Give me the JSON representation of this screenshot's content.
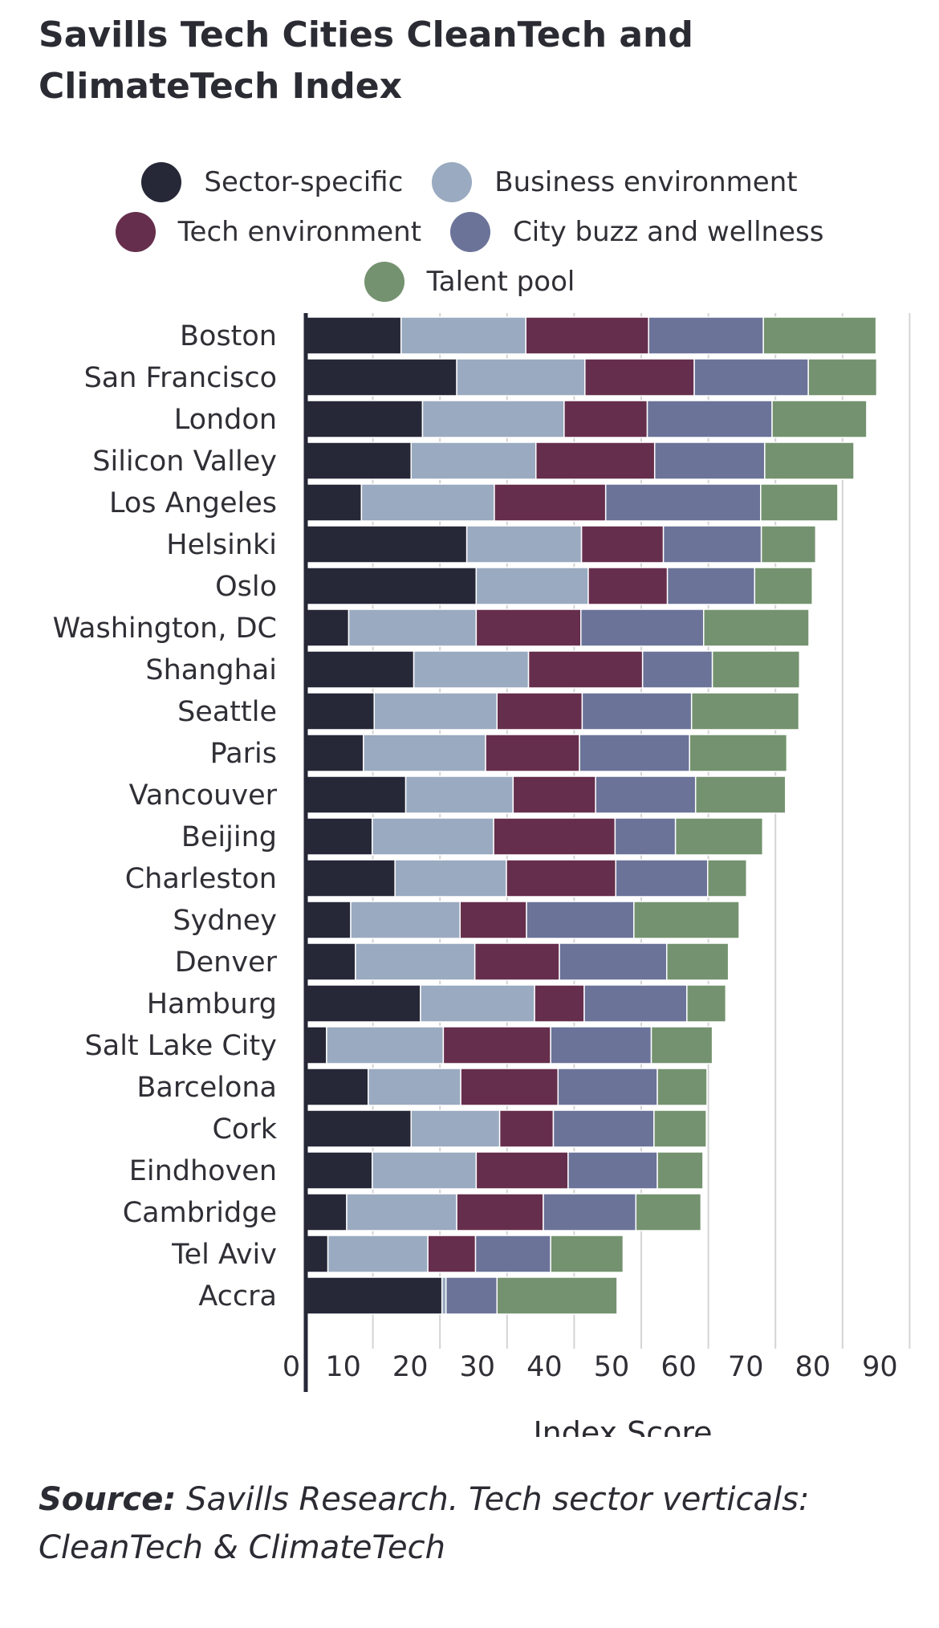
{
  "title_line1": "Savills Tech Cities CleanTech and",
  "title_line2": "ClimateTech Index",
  "source_label": "Source:",
  "source_text": "Savills Research. Tech sector verticals: CleanTech & ClimateTech",
  "chart_data": {
    "type": "bar",
    "orientation": "horizontal",
    "stacked": true,
    "title": "Savills Tech Cities CleanTech and ClimateTech Index",
    "xlabel": "Index Score",
    "ylabel": "",
    "xlim": [
      0,
      90
    ],
    "xticks": [
      "0",
      "10",
      "20",
      "30",
      "40",
      "50",
      "60",
      "70",
      "80",
      "90"
    ],
    "grid": "vertical",
    "legend_position": "top",
    "categories": [
      "Boston",
      "San Francisco",
      "London",
      "Silicon Valley",
      "Los Angeles",
      "Helsinki",
      "Oslo",
      "Washington, DC",
      "Shanghai",
      "Seattle",
      "Paris",
      "Vancouver",
      "Beijing",
      "Charleston",
      "Sydney",
      "Denver",
      "Hamburg",
      "Salt Lake City",
      "Barcelona",
      "Cork",
      "Eindhoven",
      "Cambridge",
      "Tel Aviv",
      "Accra"
    ],
    "series": [
      {
        "name": "Sector-specific",
        "color": "#262838",
        "values": [
          14.2,
          22.5,
          17.4,
          15.7,
          8.3,
          24.0,
          25.4,
          6.4,
          16.1,
          10.2,
          8.6,
          14.9,
          9.9,
          13.3,
          6.7,
          7.4,
          17.1,
          3.1,
          9.3,
          15.7,
          9.9,
          6.1,
          3.3,
          20.3
        ]
      },
      {
        "name": "Business environment",
        "color": "#9aaac0",
        "values": [
          18.6,
          19.1,
          21.1,
          18.6,
          19.8,
          17.1,
          16.7,
          19.0,
          17.1,
          18.3,
          18.2,
          16.0,
          18.1,
          16.6,
          16.3,
          17.8,
          17.0,
          17.4,
          13.8,
          13.2,
          15.5,
          16.4,
          14.9,
          0.6
        ]
      },
      {
        "name": "Tech environment",
        "color": "#662e4d",
        "values": [
          18.3,
          16.3,
          12.4,
          17.7,
          16.6,
          12.2,
          11.8,
          15.6,
          17.0,
          12.7,
          14.0,
          12.3,
          18.1,
          16.3,
          9.9,
          12.6,
          7.4,
          16.0,
          14.5,
          8.0,
          13.7,
          12.9,
          7.1,
          0.0
        ]
      },
      {
        "name": "City buzz and wellness",
        "color": "#6b7399",
        "values": [
          17.1,
          17.0,
          18.6,
          16.4,
          23.1,
          14.6,
          13.0,
          18.3,
          10.4,
          16.3,
          16.4,
          14.9,
          9.0,
          13.7,
          16.0,
          16.0,
          15.3,
          15.0,
          14.8,
          15.0,
          13.3,
          13.8,
          11.2,
          7.6
        ]
      },
      {
        "name": "Talent pool",
        "color": "#74926f",
        "values": [
          16.8,
          10.2,
          14.1,
          13.3,
          11.5,
          8.1,
          8.6,
          15.7,
          13.0,
          16.0,
          14.5,
          13.4,
          13.0,
          5.8,
          15.7,
          9.2,
          5.8,
          9.1,
          7.4,
          7.8,
          6.8,
          9.7,
          10.8,
          17.9
        ]
      }
    ]
  }
}
